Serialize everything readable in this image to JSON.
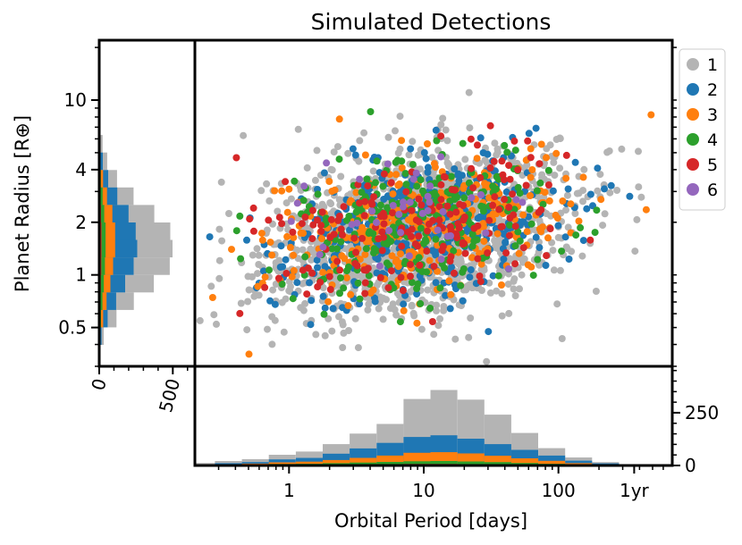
{
  "chart_data": {
    "type": "scatter",
    "title": "Simulated Detections",
    "xlabel": "Orbital Period [days]",
    "ylabel": "Planet Radius [R⊕]",
    "x_scale": "log",
    "y_scale": "log",
    "xlim": [
      0.2,
      700
    ],
    "ylim": [
      0.3,
      22
    ],
    "x_ticks": [
      {
        "value": 1,
        "label": "1"
      },
      {
        "value": 10,
        "label": "10"
      },
      {
        "value": 100,
        "label": "100"
      },
      {
        "value": 365,
        "label": "1yr"
      }
    ],
    "y_ticks": [
      {
        "value": 0.5,
        "label": "0.5"
      },
      {
        "value": 1,
        "label": "1"
      },
      {
        "value": 2,
        "label": "2"
      },
      {
        "value": 4,
        "label": "4"
      },
      {
        "value": 10,
        "label": "10"
      }
    ],
    "legend_position": "outside-right-top",
    "series": [
      {
        "name": "1",
        "color": "#b4b4b4",
        "n": 1500,
        "logP_mean": 0.95,
        "logP_sd": 0.55,
        "logR_mean": 0.24,
        "logR_sd": 0.22
      },
      {
        "name": "2",
        "color": "#1f77b4",
        "n": 420,
        "logP_mean": 0.95,
        "logP_sd": 0.55,
        "logR_mean": 0.3,
        "logR_sd": 0.2
      },
      {
        "name": "3",
        "color": "#ff7f0e",
        "n": 320,
        "logP_mean": 0.95,
        "logP_sd": 0.55,
        "logR_mean": 0.3,
        "logR_sd": 0.2
      },
      {
        "name": "4",
        "color": "#2ca02c",
        "n": 260,
        "logP_mean": 0.95,
        "logP_sd": 0.55,
        "logR_mean": 0.3,
        "logR_sd": 0.2
      },
      {
        "name": "5",
        "color": "#d62728",
        "n": 190,
        "logP_mean": 0.95,
        "logP_sd": 0.55,
        "logR_mean": 0.3,
        "logR_sd": 0.2
      },
      {
        "name": "6",
        "color": "#9467bd",
        "n": 40,
        "logP_mean": 0.95,
        "logP_sd": 0.45,
        "logR_mean": 0.3,
        "logR_sd": 0.18
      }
    ],
    "bottom_histogram": {
      "type": "stacked-bar",
      "ylim": [
        0,
        470
      ],
      "y_ticks": [
        {
          "value": 0,
          "label": "0"
        },
        {
          "value": 250,
          "label": "250"
        }
      ],
      "bin_edges_logP": [
        -0.75,
        -0.55,
        -0.35,
        -0.15,
        0.05,
        0.25,
        0.45,
        0.65,
        0.85,
        1.05,
        1.25,
        1.45,
        1.65,
        1.85,
        2.05,
        2.25,
        2.45,
        2.65,
        2.85
      ],
      "counts": {
        "1": [
          6,
          10,
          14,
          22,
          30,
          45,
          70,
          90,
          180,
          215,
          185,
          140,
          80,
          35,
          15,
          6,
          2,
          1
        ],
        "2": [
          3,
          5,
          7,
          14,
          18,
          30,
          45,
          60,
          75,
          80,
          70,
          55,
          40,
          25,
          12,
          5,
          1,
          0
        ],
        "3": [
          2,
          3,
          5,
          8,
          10,
          15,
          22,
          30,
          40,
          42,
          38,
          30,
          22,
          14,
          7,
          4,
          1,
          0
        ],
        "4": [
          1,
          2,
          3,
          4,
          5,
          7,
          9,
          11,
          13,
          14,
          13,
          11,
          8,
          5,
          3,
          1,
          0,
          0
        ],
        "5": [
          0,
          1,
          1,
          2,
          2,
          3,
          4,
          5,
          5,
          5,
          5,
          4,
          3,
          2,
          1,
          0,
          0,
          0
        ],
        "6": [
          0,
          0,
          0,
          1,
          1,
          1,
          1,
          1,
          2,
          2,
          1,
          1,
          1,
          1,
          0,
          0,
          0,
          0
        ]
      }
    },
    "left_histogram": {
      "type": "stacked-barh",
      "xlim": [
        0,
        650
      ],
      "x_ticks": [
        {
          "value": 0,
          "label": "0"
        },
        {
          "value": 500,
          "label": "500"
        }
      ],
      "bin_edges_logR": [
        -0.4,
        -0.3,
        -0.2,
        -0.1,
        0.0,
        0.1,
        0.2,
        0.3,
        0.4,
        0.5,
        0.6,
        0.7,
        0.8
      ],
      "counts": {
        "1": [
          15,
          60,
          120,
          195,
          245,
          240,
          235,
          175,
          110,
          60,
          30,
          15
        ],
        "2": [
          8,
          30,
          65,
          100,
          140,
          150,
          140,
          110,
          70,
          35,
          15,
          5
        ],
        "3": [
          5,
          15,
          28,
          45,
          55,
          65,
          65,
          55,
          30,
          15,
          5,
          2
        ],
        "4": [
          2,
          8,
          14,
          20,
          25,
          28,
          28,
          22,
          15,
          7,
          3,
          1
        ],
        "5": [
          1,
          3,
          6,
          9,
          11,
          12,
          12,
          10,
          7,
          3,
          1,
          0
        ],
        "6": [
          0,
          1,
          2,
          2,
          3,
          3,
          3,
          2,
          1,
          1,
          0,
          0
        ]
      }
    }
  }
}
